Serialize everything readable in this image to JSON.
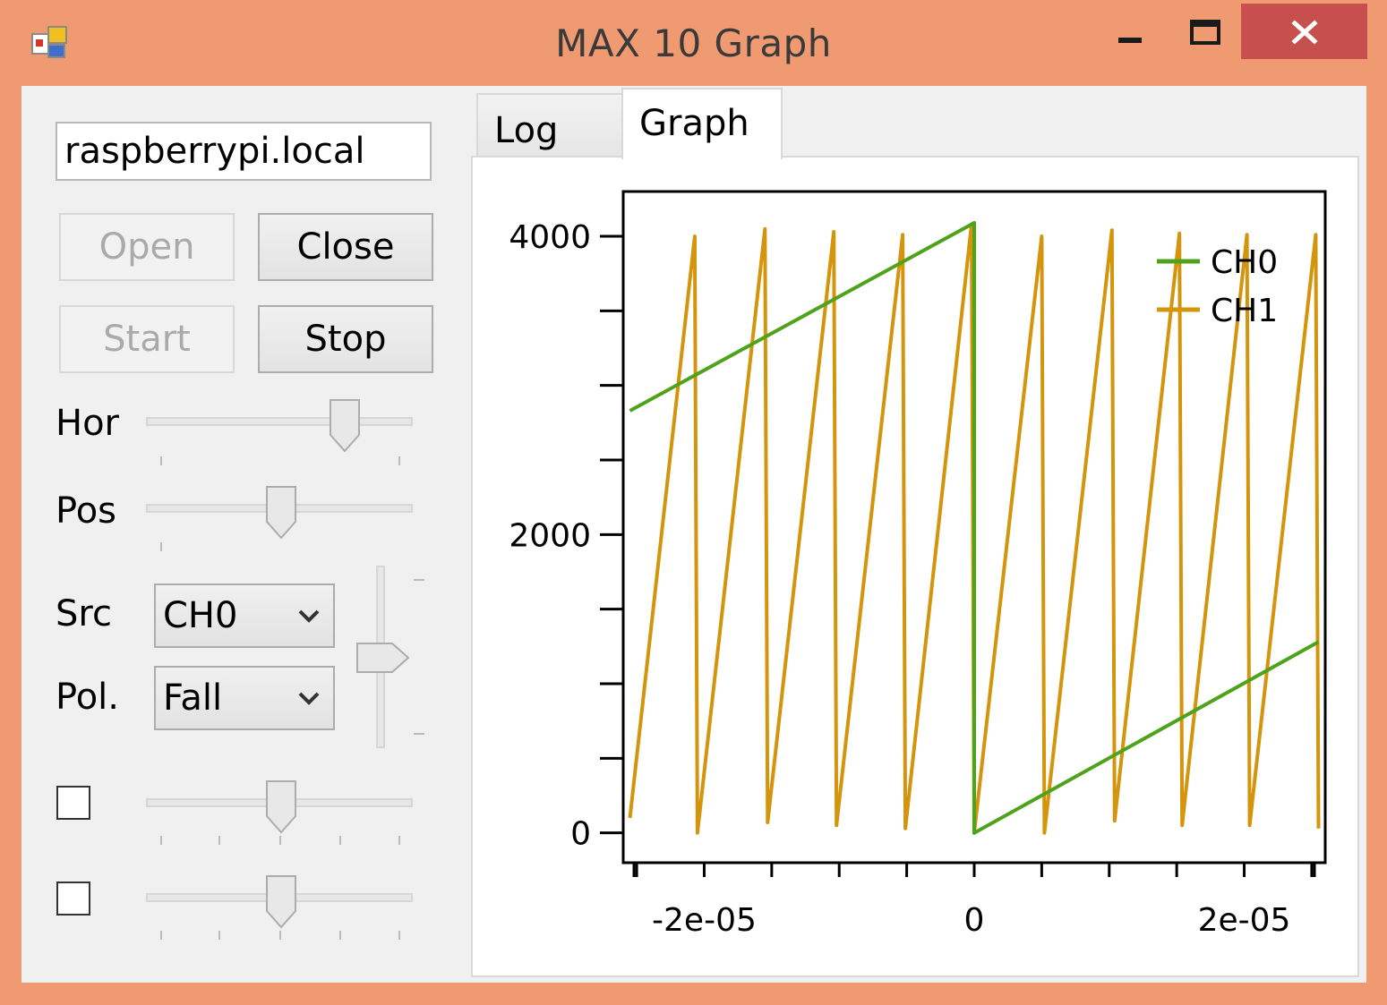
{
  "window": {
    "title": "MAX 10 Graph"
  },
  "connection": {
    "host": "raspberrypi.local",
    "open_label": "Open",
    "close_label": "Close",
    "start_label": "Start",
    "stop_label": "Stop"
  },
  "controls": {
    "hor_label": "Hor",
    "pos_label": "Pos",
    "src_label": "Src",
    "src_value": "CH0",
    "pol_label": "Pol.",
    "pol_value": "Fall"
  },
  "tabs": [
    {
      "label": "Log",
      "selected": false
    },
    {
      "label": "Graph",
      "selected": true
    }
  ],
  "colors": {
    "ch0": "#4fa31a",
    "ch1": "#d4940c"
  },
  "chart_data": {
    "type": "line",
    "title": "",
    "xlabel": "",
    "ylabel": "",
    "xlim": [
      -2.6e-05,
      2.6e-05
    ],
    "ylim": [
      -200,
      4300
    ],
    "xticks": [
      -2e-05,
      0,
      2e-05
    ],
    "xtick_labels": [
      "-2e-05",
      "0",
      "2e-05"
    ],
    "yticks": [
      0,
      2000,
      4000
    ],
    "ytick_labels": [
      "0",
      "2000",
      "4000"
    ],
    "legend_position": "top-right",
    "grid": false,
    "series": [
      {
        "name": "CH0",
        "color": "#4fa31a",
        "x": [
          -2.55e-05,
          0,
          0,
          2.55e-05
        ],
        "y": [
          2830,
          4090,
          0,
          1280
        ]
      },
      {
        "name": "CH1",
        "color": "#d4940c",
        "x": [
          -2.55e-05,
          -2.07e-05,
          -2.05e-05,
          -1.55e-05,
          -1.53e-05,
          -1.04e-05,
          -1.02e-05,
          -5.3e-06,
          -5.1e-06,
          -2e-07,
          0,
          5e-06,
          5.2e-06,
          1.02e-05,
          1.04e-05,
          1.52e-05,
          1.54e-05,
          2.02e-05,
          2.04e-05,
          2.53e-05,
          2.55e-05
        ],
        "y": [
          100,
          4000,
          0,
          4050,
          70,
          4030,
          50,
          4010,
          30,
          4080,
          0,
          4000,
          0,
          4040,
          80,
          4020,
          50,
          4010,
          50,
          4010,
          30
        ]
      }
    ]
  }
}
